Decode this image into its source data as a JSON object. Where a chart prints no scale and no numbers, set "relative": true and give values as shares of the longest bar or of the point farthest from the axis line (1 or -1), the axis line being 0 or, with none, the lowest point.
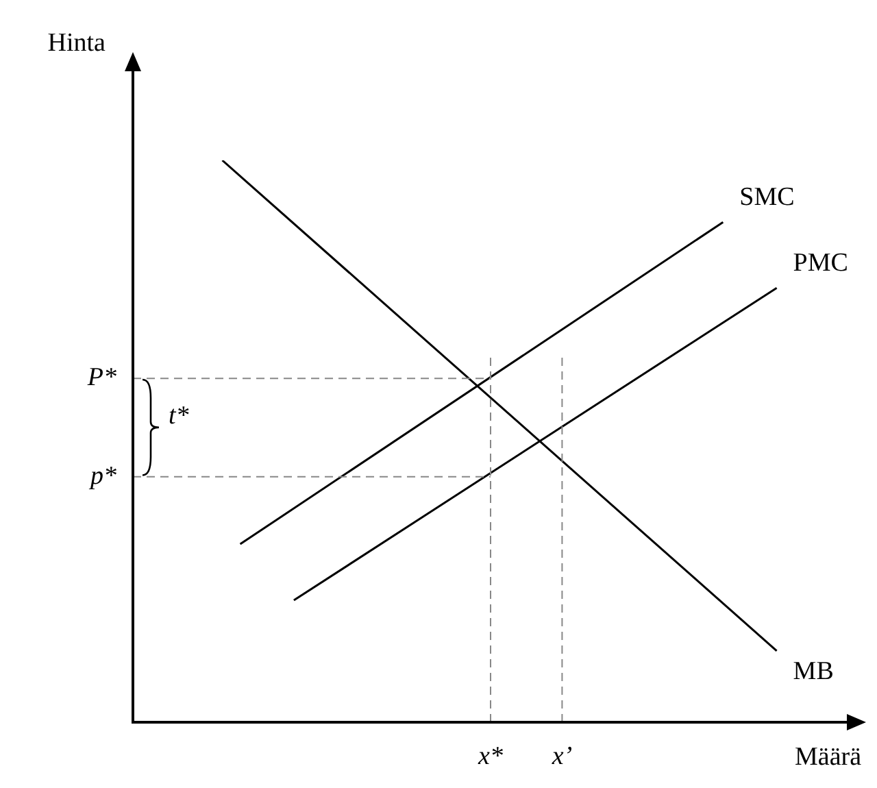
{
  "chart_data": {
    "type": "line",
    "relative": true,
    "xlabel": "Määrä",
    "ylabel": "Hinta",
    "legend": false,
    "marker": "none",
    "line_style": "solid",
    "categories": [
      null,
      null,
      null,
      null,
      null,
      null,
      null,
      null,
      null,
      null,
      null,
      null,
      null,
      null,
      null,
      null,
      null,
      null,
      null,
      null,
      "x*",
      null,
      null,
      null,
      "x’",
      null,
      null,
      null,
      null,
      null,
      null,
      null,
      null,
      null,
      null,
      null,
      null,
      null,
      null,
      null,
      null
    ],
    "series": [
      {
        "name": "MB",
        "color": "#000000",
        "values": [
          null,
          null,
          null,
          null,
          null,
          1.0,
          null,
          null,
          null,
          null,
          null,
          null,
          null,
          null,
          null,
          null,
          null,
          null,
          null,
          null,
          null,
          null,
          null,
          null,
          null,
          null,
          null,
          null,
          null,
          null,
          null,
          null,
          null,
          null,
          null,
          null,
          0.127,
          null,
          null,
          null,
          null
        ]
      },
      {
        "name": "SMC",
        "color": "#000000",
        "values": [
          null,
          null,
          null,
          null,
          null,
          null,
          0.317,
          null,
          null,
          null,
          null,
          null,
          null,
          null,
          null,
          null,
          null,
          null,
          null,
          null,
          null,
          null,
          null,
          null,
          null,
          null,
          null,
          null,
          null,
          null,
          null,
          null,
          null,
          0.89,
          null,
          null,
          null,
          null,
          null,
          null,
          null
        ]
      },
      {
        "name": "PMC",
        "color": "#000000",
        "values": [
          null,
          null,
          null,
          null,
          null,
          null,
          null,
          null,
          null,
          0.217,
          null,
          null,
          null,
          null,
          null,
          null,
          null,
          null,
          null,
          null,
          null,
          null,
          null,
          null,
          null,
          null,
          null,
          null,
          null,
          null,
          null,
          null,
          null,
          null,
          null,
          null,
          0.773,
          null,
          null,
          null,
          null
        ]
      }
    ],
    "ref_lines": [
      {
        "axis": "y",
        "value": 0.612,
        "label": "P*",
        "color": "#888888",
        "line_style": "dashed"
      },
      {
        "axis": "y",
        "value": 0.437,
        "label": "p*",
        "color": "#888888",
        "line_style": "dashed"
      },
      {
        "axis": "x",
        "value": "x*",
        "color": "#888888",
        "line_style": "dashed"
      },
      {
        "axis": "x",
        "value": "x’",
        "color": "#888888",
        "line_style": "dashed"
      }
    ],
    "annotations": [
      "t*"
    ]
  }
}
